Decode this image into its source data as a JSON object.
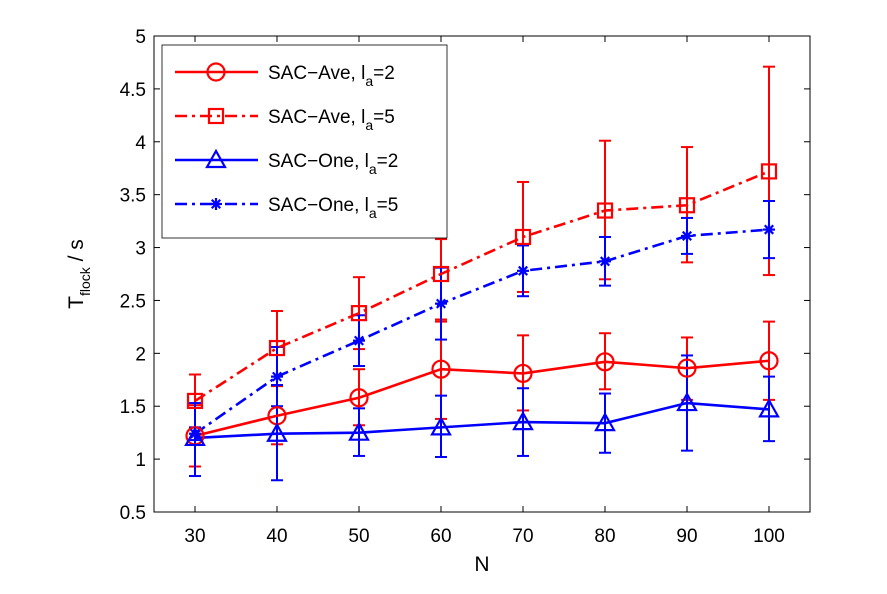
{
  "chart_data": {
    "type": "line",
    "xlabel": "N",
    "ylabel": {
      "main": "T",
      "sub": "flock",
      "suffix": " / s"
    },
    "xlim": [
      25,
      105
    ],
    "ylim": [
      0.5,
      5
    ],
    "x_ticks": [
      30,
      40,
      50,
      60,
      70,
      80,
      90,
      100
    ],
    "y_ticks": [
      0.5,
      1,
      1.5,
      2,
      2.5,
      3,
      3.5,
      4,
      4.5,
      5
    ],
    "grid": false,
    "legend_position": "top-left",
    "x": [
      30,
      40,
      50,
      60,
      70,
      80,
      90,
      100
    ],
    "series": [
      {
        "name": "SAC−Ave, l",
        "name_sub": "a",
        "name_suffix": "=2",
        "color": "#ff0000",
        "line_style": "solid",
        "marker": "circle",
        "values": [
          1.22,
          1.41,
          1.58,
          1.85,
          1.81,
          1.92,
          1.86,
          1.93
        ],
        "err_low": [
          0.93,
          1.14,
          1.32,
          1.38,
          1.46,
          1.66,
          1.56,
          1.56
        ],
        "err_high": [
          1.51,
          1.69,
          1.85,
          2.32,
          2.17,
          2.19,
          2.15,
          2.3
        ]
      },
      {
        "name": "SAC−Ave, l",
        "name_sub": "a",
        "name_suffix": "=5",
        "color": "#ff0000",
        "line_style": "dashdot",
        "marker": "square",
        "values": [
          1.55,
          2.05,
          2.38,
          2.75,
          3.1,
          3.35,
          3.4,
          3.72
        ],
        "err_low": [
          1.3,
          1.7,
          2.04,
          2.3,
          2.58,
          2.7,
          2.86,
          2.74
        ],
        "err_high": [
          1.8,
          2.4,
          2.72,
          3.08,
          3.62,
          4.01,
          3.95,
          4.71
        ]
      },
      {
        "name": "SAC−One, l",
        "name_sub": "a",
        "name_suffix": "=2",
        "color": "#0000ff",
        "line_style": "solid",
        "marker": "triangle",
        "values": [
          1.2,
          1.24,
          1.25,
          1.3,
          1.35,
          1.34,
          1.53,
          1.47
        ],
        "err_low": [
          0.84,
          0.8,
          1.03,
          1.02,
          1.03,
          1.06,
          1.08,
          1.17
        ],
        "err_high": [
          1.53,
          1.7,
          1.48,
          1.6,
          1.67,
          1.62,
          1.98,
          1.78
        ]
      },
      {
        "name": "SAC−One, l",
        "name_sub": "a",
        "name_suffix": "=5",
        "color": "#0000ff",
        "line_style": "dashdot",
        "marker": "asterisk",
        "values": [
          1.24,
          1.78,
          2.12,
          2.47,
          2.78,
          2.87,
          3.11,
          3.17
        ],
        "err_low": [
          1.18,
          1.5,
          1.88,
          2.13,
          2.54,
          2.64,
          2.94,
          2.9
        ],
        "err_high": [
          1.3,
          2.06,
          2.36,
          2.81,
          3.02,
          3.1,
          3.28,
          3.44
        ]
      }
    ]
  }
}
